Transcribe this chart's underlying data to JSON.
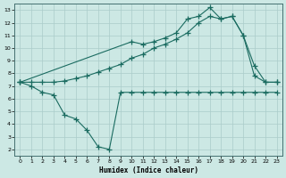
{
  "xlabel": "Humidex (Indice chaleur)",
  "bg_color": "#cce8e4",
  "grid_color": "#aaccca",
  "line_color": "#1a6b60",
  "xlim": [
    -0.5,
    23.5
  ],
  "ylim": [
    1.5,
    13.5
  ],
  "xticks": [
    0,
    1,
    2,
    3,
    4,
    5,
    6,
    7,
    8,
    9,
    10,
    11,
    12,
    13,
    14,
    15,
    16,
    17,
    18,
    19,
    20,
    21,
    22,
    23
  ],
  "yticks": [
    2,
    3,
    4,
    5,
    6,
    7,
    8,
    9,
    10,
    11,
    12,
    13
  ],
  "line1_x": [
    0,
    1,
    2,
    3,
    4,
    5,
    6,
    7,
    8,
    9,
    10,
    11,
    12,
    13,
    14,
    15,
    16,
    17,
    18,
    19,
    20,
    21,
    22,
    23
  ],
  "line1_y": [
    7.3,
    7.0,
    6.5,
    6.3,
    4.7,
    4.4,
    3.5,
    2.2,
    2.0,
    6.5,
    6.5,
    6.5,
    6.5,
    6.5,
    6.5,
    6.5,
    6.5,
    6.5,
    6.5,
    6.5,
    6.5,
    6.5,
    6.5,
    6.5
  ],
  "line2_x": [
    0,
    1,
    2,
    3,
    4,
    5,
    6,
    7,
    8,
    9,
    10,
    11,
    12,
    13,
    14,
    15,
    16,
    17,
    18,
    19,
    20,
    21,
    22,
    23
  ],
  "line2_y": [
    7.3,
    7.3,
    7.3,
    7.3,
    7.4,
    7.6,
    7.8,
    8.1,
    8.4,
    8.7,
    9.2,
    9.5,
    10.0,
    10.3,
    10.7,
    11.2,
    12.0,
    12.5,
    12.3,
    12.5,
    11.0,
    7.8,
    7.3,
    7.3
  ],
  "line3_x": [
    0,
    10,
    11,
    12,
    13,
    14,
    15,
    16,
    17,
    18,
    19,
    20,
    21,
    22,
    23
  ],
  "line3_y": [
    7.3,
    10.5,
    10.3,
    10.5,
    10.8,
    11.2,
    12.3,
    12.5,
    13.2,
    12.3,
    12.5,
    11.0,
    8.6,
    7.3,
    7.3
  ]
}
